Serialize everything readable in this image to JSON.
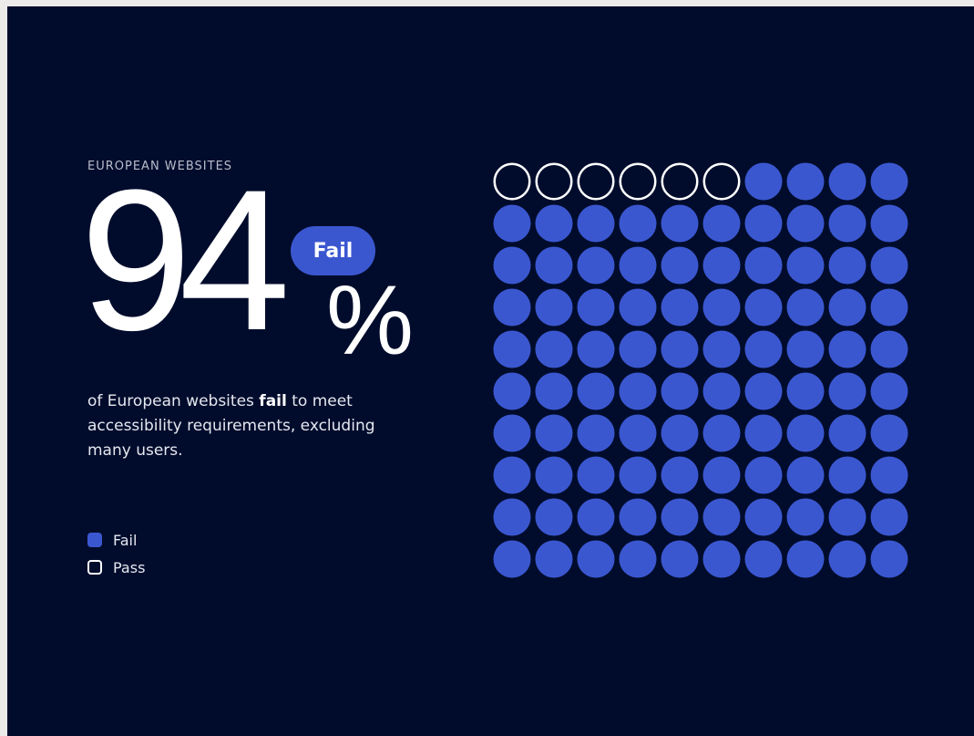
{
  "header": {
    "eyebrow": "EUROPEAN WEBSITES"
  },
  "stat": {
    "value": "94",
    "percent_sign": "%",
    "badge": "Fail"
  },
  "description": {
    "prefix": "of European websites ",
    "highlight": "fail",
    "suffix": " to meet accessibility requirements, excluding many users."
  },
  "legend": {
    "fail_label": "Fail",
    "pass_label": "Pass"
  },
  "colors": {
    "background": "#010c2c",
    "fail": "#3b57d0",
    "pass_outline": "#ffffff"
  },
  "chart_data": {
    "type": "waffle",
    "rows": 10,
    "columns": 10,
    "total": 100,
    "series": [
      {
        "name": "Fail",
        "value": 94
      },
      {
        "name": "Pass",
        "value": 6
      }
    ]
  }
}
